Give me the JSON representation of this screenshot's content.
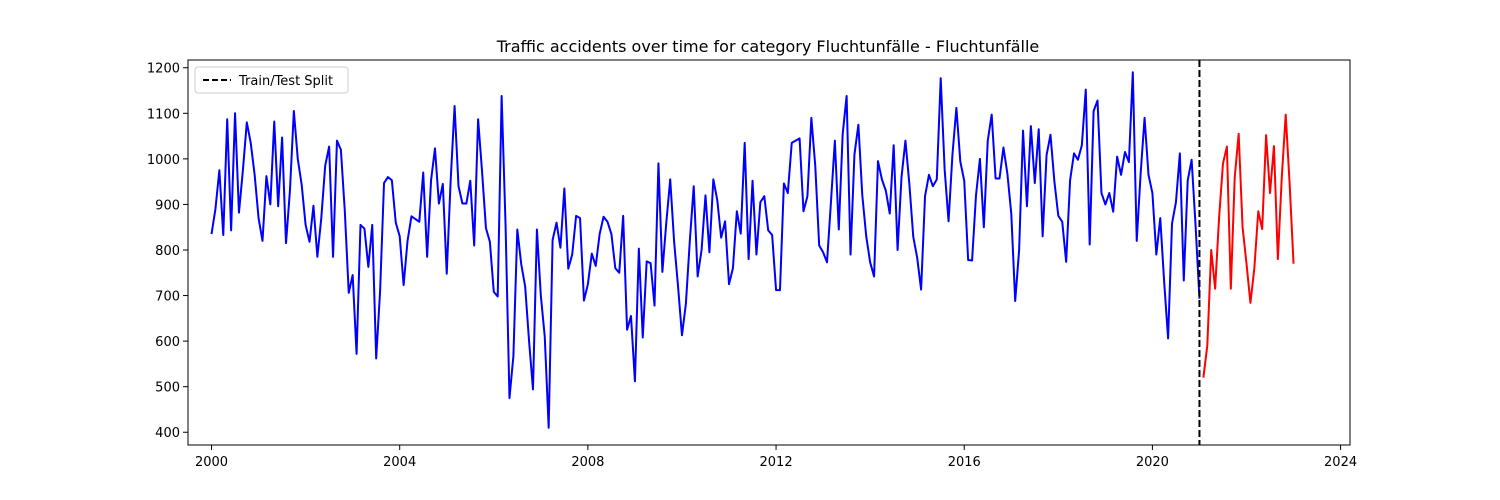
{
  "chart_data": {
    "type": "line",
    "title": "Traffic accidents over time for category Fluchtunfälle - Fluchtunfälle",
    "xlabel": "",
    "ylabel": "",
    "xlim": [
      1999.5,
      2024.2
    ],
    "ylim": [
      372,
      1217
    ],
    "x_ticks": [
      "2000",
      "2004",
      "2008",
      "2012",
      "2016",
      "2020",
      "2024"
    ],
    "y_ticks": [
      "400",
      "500",
      "600",
      "700",
      "800",
      "900",
      "1000",
      "1100",
      "1200"
    ],
    "grid": false,
    "legend_position": "top-left",
    "split": {
      "x": 2021.0,
      "label": "Train/Test Split",
      "color": "#000000",
      "style": "dashed"
    },
    "start_year": 2000,
    "series": [
      {
        "name": "train",
        "color": "#0000ff",
        "values": [
          835,
          890,
          975,
          833,
          1087,
          843,
          1100,
          882,
          975,
          1080,
          1035,
          965,
          870,
          820,
          962,
          900,
          1082,
          896,
          1047,
          815,
          930,
          1105,
          1000,
          943,
          855,
          818,
          897,
          785,
          870,
          985,
          1027,
          785,
          1040,
          1020,
          885,
          706,
          745,
          572,
          855,
          847,
          763,
          855,
          562,
          710,
          947,
          960,
          953,
          860,
          830,
          723,
          820,
          874,
          868,
          862,
          970,
          785,
          953,
          1023,
          902,
          945,
          748,
          953,
          1116,
          940,
          902,
          902,
          952,
          810,
          1087,
          973,
          848,
          818,
          708,
          698,
          1138,
          856,
          475,
          567,
          845,
          769,
          720,
          600,
          494,
          845,
          700,
          610,
          410,
          822,
          860,
          805,
          935,
          759,
          790,
          875,
          870,
          689,
          725,
          792,
          765,
          835,
          873,
          862,
          835,
          760,
          750,
          875,
          625,
          655,
          512,
          803,
          608,
          775,
          771,
          678,
          990,
          752,
          860,
          955,
          818,
          720,
          613,
          682,
          820,
          940,
          742,
          800,
          920,
          795,
          955,
          910,
          827,
          863,
          725,
          760,
          885,
          836,
          1035,
          780,
          952,
          790,
          905,
          918,
          843,
          833,
          712,
          712,
          946,
          925,
          1035,
          1040,
          1045,
          885,
          918,
          1090,
          985,
          810,
          795,
          773,
          905,
          1040,
          845,
          1055,
          1138,
          790,
          1010,
          1075,
          920,
          830,
          773,
          742,
          995,
          955,
          930,
          880,
          1030,
          800,
          960,
          1040,
          945,
          829,
          783,
          713,
          918,
          965,
          940,
          955,
          1177,
          977,
          863,
          1010,
          1112,
          994,
          952,
          778,
          777,
          920,
          1000,
          850,
          1040,
          1097,
          957,
          957,
          1025,
          968,
          880,
          688,
          800,
          1062,
          896,
          1072,
          947,
          1065,
          830,
          1008,
          1053,
          950,
          875,
          862,
          774,
          953,
          1012,
          998,
          1030,
          1152,
          812,
          1105,
          1128,
          925,
          900,
          925,
          884,
          1005,
          965,
          1015,
          993,
          1190,
          820,
          968,
          1090,
          965,
          925,
          790,
          870,
          730,
          606,
          858,
          905,
          1012,
          733,
          952,
          998,
          855,
          693
        ]
      },
      {
        "name": "test",
        "color": "#ff0000",
        "values": [
          520,
          590,
          800,
          715,
          870,
          990,
          1027,
          715,
          960,
          1055,
          850,
          770,
          684,
          760,
          885,
          846,
          1052,
          925,
          1028,
          780,
          960,
          1097,
          945,
          770
        ]
      }
    ]
  }
}
